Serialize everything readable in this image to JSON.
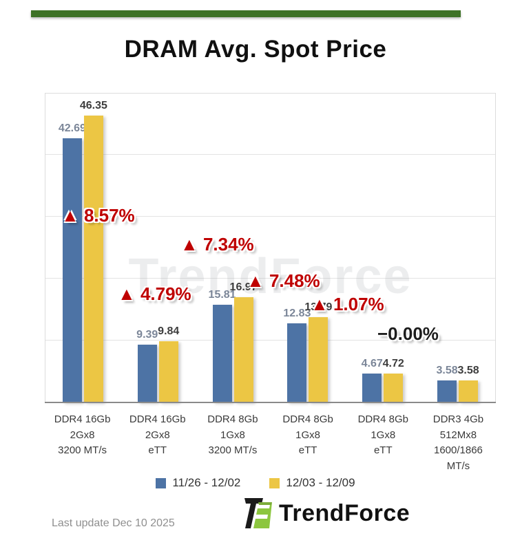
{
  "title": "DRAM Avg. Spot Price",
  "chart_data": {
    "type": "bar",
    "title": "DRAM Avg. Spot Price",
    "categories": [
      [
        "DDR4 16Gb",
        "2Gx8",
        "3200 MT/s"
      ],
      [
        "DDR4 16Gb",
        "2Gx8",
        "eTT"
      ],
      [
        "DDR4 8Gb",
        "1Gx8",
        "3200 MT/s"
      ],
      [
        "DDR4 8Gb",
        "1Gx8",
        "eTT"
      ],
      [
        "DDR4 8Gb",
        "1Gx8",
        "eTT"
      ],
      [
        "DDR3 4Gb",
        "512Mx8",
        "1600/1866",
        "MT/s"
      ]
    ],
    "series": [
      {
        "name": "11/26 - 12/02",
        "color": "#4d73a5",
        "values": [
          42.69,
          9.39,
          15.81,
          12.83,
          4.67,
          3.58
        ]
      },
      {
        "name": "12/03 - 12/09",
        "color": "#ecc644",
        "values": [
          46.35,
          9.84,
          16.97,
          13.79,
          4.72,
          3.58
        ]
      }
    ],
    "changes": [
      {
        "label": "▲ 8.57%",
        "direction": "up"
      },
      {
        "label": "▲ 4.79%",
        "direction": "up"
      },
      {
        "label": "▲ 7.34%",
        "direction": "up"
      },
      {
        "label": "▲ 7.48%",
        "direction": "up"
      },
      {
        "label": "▲ 1.07%",
        "direction": "up"
      },
      {
        "label": "−0.00%",
        "direction": "flat"
      }
    ],
    "ylim": [
      0,
      50
    ],
    "grid": true,
    "legend_position": "bottom",
    "watermark": "TrendForce"
  },
  "colors": {
    "accent_green": "#3d7226",
    "bar_blue": "#4d73a5",
    "bar_yellow": "#ecc644",
    "up_red": "#bf0000",
    "flat_black": "#1c1c1c"
  },
  "footer": {
    "last_update": "Last update Dec 10 2025",
    "brand": "TrendForce"
  }
}
